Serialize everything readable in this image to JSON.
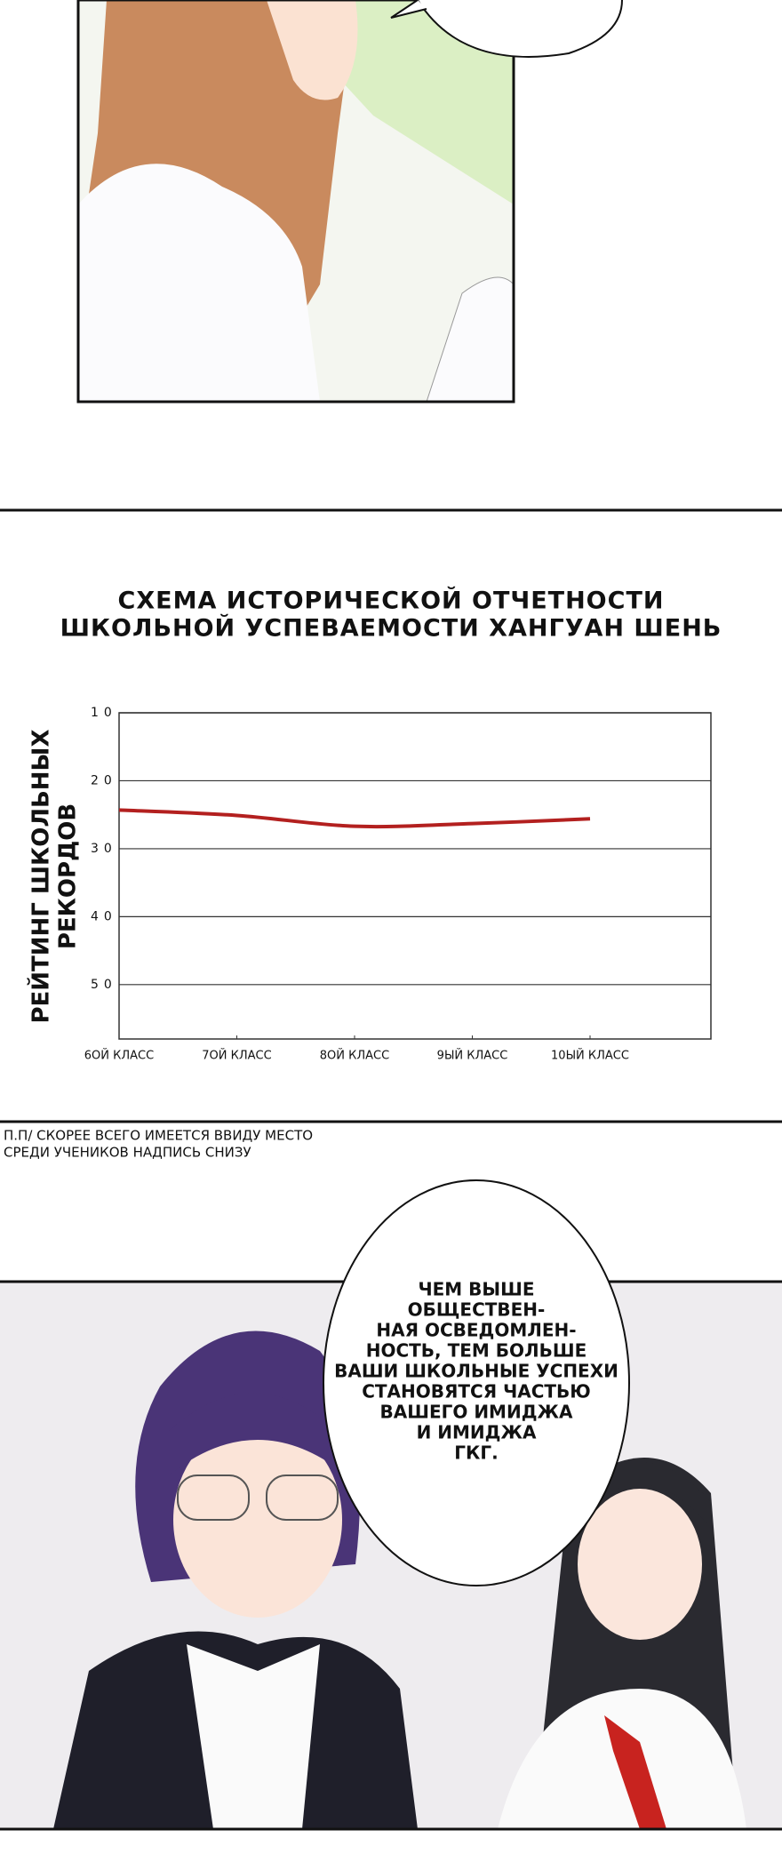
{
  "chart_data": {
    "type": "line",
    "title": [
      "СХЕМА ИСТОРИЧЕСКОЙ ОТЧЕТНОСТИ",
      "ШКОЛЬНОЙ УСПЕВАЕМОСТИ ХАНГУАН ШЕНЬ"
    ],
    "y_label": [
      "РЕЙТИНГ ШКОЛЬНЫХ",
      "РЕКОРДОВ"
    ],
    "categories": [
      "6ОЙ КЛАСС",
      "7ОЙ КЛАСС",
      "8ОЙ КЛАСС",
      "9ЫЙ КЛАСС",
      "10ЫЙ КЛАСС"
    ],
    "series": [
      {
        "color": "#b3201f",
        "values": [
          24.3,
          25.1,
          26.7,
          26.3,
          25.6
        ]
      }
    ],
    "ylim": [
      10,
      58
    ],
    "yticks": [
      10,
      20,
      30,
      40,
      50
    ],
    "inverted_y": true,
    "grid": true
  },
  "note": [
    "П.П/ СКОРЕЕ ВСЕГО ИМЕЕТСЯ ВВИДУ МЕСТО",
    "СРЕДИ УЧЕНИКОВ НАДПИСЬ СНИЗУ"
  ],
  "bubble": [
    "ЧЕМ ВЫШЕ",
    "ОБЩЕСТВЕН-",
    "НАЯ ОСВЕДОМЛЕН-",
    "НОСТЬ, ТЕМ БОЛЬШЕ",
    "ВАШИ ШКОЛЬНЫЕ УСПЕХИ",
    "СТАНОВЯТСЯ ЧАСТЬЮ",
    "ВАШЕГО ИМИДЖА",
    "И ИМИДЖА",
    "ГКГ."
  ]
}
